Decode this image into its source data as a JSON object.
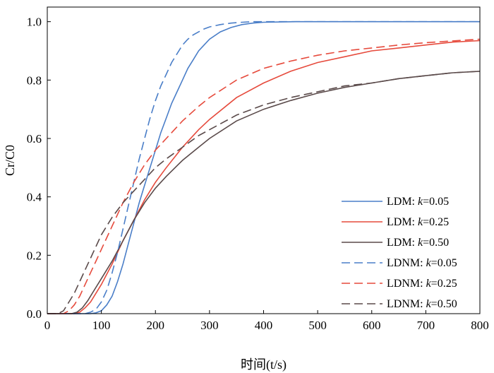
{
  "chart_data": {
    "type": "line",
    "xlabel": "时间(t/s)",
    "ylabel": "Cr/C0",
    "xlim": [
      0,
      800
    ],
    "ylim": [
      0,
      1.05
    ],
    "xticks": [
      "0",
      "100",
      "200",
      "300",
      "400",
      "500",
      "600",
      "700",
      "800"
    ],
    "yticks": [
      "0.0",
      "0.2",
      "0.4",
      "0.6",
      "0.8",
      "1.0"
    ],
    "grid": false,
    "legend_position": "bottom-right",
    "series": [
      {
        "name": "LDM: k=0.05",
        "legend_prefix": "LDM: ",
        "legend_k": "k",
        "legend_value": "=0.05",
        "color": "#4a7ec8",
        "dash": "solid",
        "x": [
          0,
          80,
          90,
          100,
          110,
          120,
          130,
          140,
          150,
          160,
          170,
          180,
          190,
          200,
          210,
          220,
          230,
          240,
          250,
          260,
          270,
          280,
          290,
          300,
          320,
          340,
          360,
          380,
          400,
          430,
          460,
          500,
          600,
          700,
          800
        ],
        "y": [
          0,
          0,
          0.003,
          0.01,
          0.03,
          0.06,
          0.11,
          0.17,
          0.24,
          0.31,
          0.38,
          0.44,
          0.5,
          0.56,
          0.62,
          0.67,
          0.72,
          0.76,
          0.8,
          0.84,
          0.87,
          0.9,
          0.92,
          0.94,
          0.965,
          0.98,
          0.99,
          0.995,
          0.998,
          0.999,
          1.0,
          1.0,
          1.0,
          1.0,
          1.0
        ]
      },
      {
        "name": "LDM: k=0.25",
        "legend_prefix": "LDM: ",
        "legend_k": "k",
        "legend_value": "=0.25",
        "color": "#e64a3c",
        "dash": "solid",
        "x": [
          0,
          50,
          60,
          70,
          80,
          90,
          100,
          120,
          140,
          160,
          180,
          200,
          220,
          250,
          280,
          300,
          350,
          400,
          450,
          500,
          550,
          600,
          650,
          700,
          750,
          800
        ],
        "y": [
          0,
          0,
          0.005,
          0.02,
          0.04,
          0.07,
          0.1,
          0.17,
          0.25,
          0.32,
          0.39,
          0.45,
          0.5,
          0.57,
          0.63,
          0.665,
          0.74,
          0.79,
          0.83,
          0.86,
          0.88,
          0.9,
          0.91,
          0.92,
          0.93,
          0.935
        ]
      },
      {
        "name": "LDM: k=0.50",
        "legend_prefix": "LDM: ",
        "legend_k": "k",
        "legend_value": "=0.50",
        "color": "#5a4a4a",
        "dash": "solid",
        "x": [
          0,
          45,
          55,
          65,
          75,
          85,
          100,
          120,
          140,
          160,
          180,
          200,
          220,
          250,
          280,
          300,
          350,
          400,
          450,
          500,
          550,
          600,
          650,
          700,
          750,
          800
        ],
        "y": [
          0,
          0,
          0.005,
          0.02,
          0.045,
          0.075,
          0.12,
          0.18,
          0.25,
          0.32,
          0.38,
          0.43,
          0.47,
          0.525,
          0.57,
          0.6,
          0.66,
          0.7,
          0.73,
          0.755,
          0.775,
          0.79,
          0.805,
          0.815,
          0.825,
          0.83
        ]
      },
      {
        "name": "LDNM: k=0.05",
        "legend_prefix": "LDNM: ",
        "legend_k": "k",
        "legend_value": "=0.05",
        "color": "#4a7ec8",
        "dash": "dashed",
        "x": [
          0,
          70,
          80,
          90,
          100,
          110,
          120,
          130,
          140,
          150,
          160,
          170,
          180,
          190,
          200,
          210,
          220,
          230,
          240,
          250,
          260,
          270,
          280,
          290,
          300,
          320,
          340,
          360,
          380,
          400,
          450,
          500,
          600,
          700,
          800
        ],
        "y": [
          0,
          0,
          0.005,
          0.015,
          0.04,
          0.08,
          0.14,
          0.21,
          0.29,
          0.37,
          0.45,
          0.53,
          0.6,
          0.67,
          0.73,
          0.78,
          0.82,
          0.86,
          0.89,
          0.92,
          0.94,
          0.955,
          0.965,
          0.975,
          0.982,
          0.99,
          0.995,
          0.998,
          1.0,
          1.0,
          1.0,
          1.0,
          1.0,
          1.0,
          1.0
        ]
      },
      {
        "name": "LDNM: k=0.25",
        "legend_prefix": "LDNM: ",
        "legend_k": "k",
        "legend_value": "=0.25",
        "color": "#e64a3c",
        "dash": "dashed",
        "x": [
          0,
          30,
          40,
          50,
          60,
          70,
          80,
          90,
          100,
          120,
          140,
          160,
          180,
          200,
          220,
          250,
          280,
          300,
          350,
          400,
          450,
          500,
          550,
          600,
          650,
          700,
          750,
          800
        ],
        "y": [
          0,
          0,
          0.01,
          0.03,
          0.06,
          0.1,
          0.14,
          0.18,
          0.22,
          0.3,
          0.38,
          0.45,
          0.51,
          0.56,
          0.6,
          0.66,
          0.71,
          0.74,
          0.8,
          0.84,
          0.865,
          0.885,
          0.9,
          0.91,
          0.92,
          0.928,
          0.934,
          0.94
        ]
      },
      {
        "name": "LDNM: k=0.50",
        "legend_prefix": "LDNM: ",
        "legend_k": "k",
        "legend_value": "=0.50",
        "color": "#5a4a4a",
        "dash": "dashed",
        "x": [
          0,
          20,
          30,
          40,
          50,
          60,
          70,
          80,
          90,
          100,
          120,
          140,
          160,
          180,
          200,
          220,
          250,
          280,
          300,
          350,
          400,
          450,
          500,
          550,
          600,
          650,
          700,
          750,
          800
        ],
        "y": [
          0,
          0,
          0.01,
          0.04,
          0.07,
          0.11,
          0.15,
          0.19,
          0.23,
          0.27,
          0.33,
          0.38,
          0.42,
          0.46,
          0.5,
          0.53,
          0.57,
          0.61,
          0.63,
          0.68,
          0.715,
          0.74,
          0.76,
          0.78,
          0.79,
          0.805,
          0.815,
          0.825,
          0.83
        ]
      }
    ]
  }
}
